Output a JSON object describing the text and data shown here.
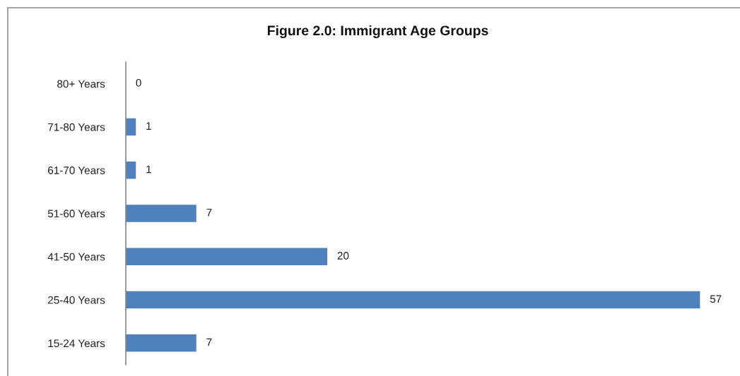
{
  "chart_data": {
    "type": "bar",
    "orientation": "horizontal",
    "title": "Figure 2.0: Immigrant Age Groups",
    "categories": [
      "80+ Years",
      "71-80 Years",
      "61-70 Years",
      "51-60 Years",
      "41-50 Years",
      "25-40 Years",
      "15-24 Years"
    ],
    "values": [
      0,
      1,
      1,
      7,
      20,
      57,
      7
    ],
    "color": "#4f81bd",
    "data_labels": true,
    "tick_labels": "y"
  }
}
